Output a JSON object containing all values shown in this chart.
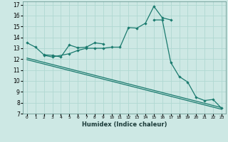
{
  "xlabel": "Humidex (Indice chaleur)",
  "xlim": [
    -0.5,
    23.5
  ],
  "ylim": [
    7,
    17.3
  ],
  "xtick_values": [
    0,
    1,
    2,
    3,
    4,
    5,
    6,
    7,
    8,
    9,
    10,
    11,
    12,
    13,
    14,
    15,
    16,
    17,
    18,
    19,
    20,
    21,
    22,
    23
  ],
  "ytick_values": [
    7,
    8,
    9,
    10,
    11,
    12,
    13,
    14,
    15,
    16,
    17
  ],
  "bg_color": "#cde8e4",
  "grid_color": "#b0d8d2",
  "line_color": "#1a7a6e",
  "series": [
    {
      "x": [
        0,
        1,
        2,
        3,
        4,
        5,
        6,
        7,
        8,
        9
      ],
      "y": [
        13.5,
        13.1,
        12.4,
        12.35,
        12.2,
        13.3,
        13.05,
        13.1,
        13.5,
        13.4
      ],
      "marker": true
    },
    {
      "x": [
        2,
        3,
        5,
        6,
        7,
        8,
        9,
        10,
        11,
        12,
        13,
        14,
        15,
        16,
        17
      ],
      "y": [
        12.35,
        12.2,
        12.5,
        12.8,
        13.0,
        13.0,
        13.0,
        13.1,
        13.1,
        14.9,
        14.85,
        15.3,
        16.85,
        15.8,
        15.6
      ],
      "marker": true
    },
    {
      "x": [
        15,
        16,
        17,
        18,
        19,
        20,
        21,
        22,
        23
      ],
      "y": [
        15.6,
        15.6,
        11.7,
        10.4,
        9.9,
        8.5,
        8.2,
        8.3,
        7.5
      ],
      "marker": true
    },
    {
      "x": [
        0,
        23
      ],
      "y": [
        12.1,
        7.55
      ],
      "marker": false
    },
    {
      "x": [
        0,
        23
      ],
      "y": [
        11.95,
        7.4
      ],
      "marker": false
    }
  ]
}
